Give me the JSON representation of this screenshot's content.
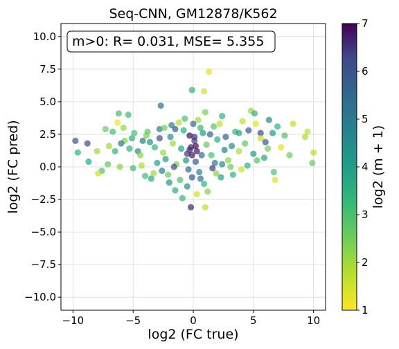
{
  "chart_data": {
    "type": "scatter",
    "title": "Seq-CNN, GM12878/K562",
    "xlabel": "log2 (FC true)",
    "ylabel": "log2 (FC pred)",
    "xlim": [
      -11,
      11
    ],
    "ylim": [
      -11,
      11
    ],
    "xticks": [
      -10,
      -5,
      0,
      5,
      10
    ],
    "xtick_labels": [
      "−10",
      "−5",
      "0",
      "5",
      "10"
    ],
    "yticks": [
      -10,
      -7.5,
      -5,
      -2.5,
      0,
      2.5,
      5,
      7.5,
      10
    ],
    "ytick_labels": [
      "−10.0",
      "−7.5",
      "−5.0",
      "−2.5",
      "0.0",
      "2.5",
      "5.0",
      "7.5",
      "10.0"
    ],
    "grid": true,
    "annotation": "m>0: R= 0.031, MSE= 5.355",
    "colorbar": {
      "label": "log2 (m + 1)",
      "min": 1,
      "max": 7,
      "ticks": [
        1,
        2,
        3,
        4,
        5,
        6,
        7
      ],
      "colormap": "viridis_r"
    },
    "marker_alpha": 0.7,
    "points": [
      [
        1.3,
        7.3,
        1.3
      ],
      [
        -0.1,
        5.9,
        3.4
      ],
      [
        0.9,
        5.8,
        1.5
      ],
      [
        -2.7,
        4.7,
        5.2
      ],
      [
        -6.2,
        4.1,
        3.1
      ],
      [
        -5.4,
        4.0,
        3.2
      ],
      [
        1.0,
        4.2,
        2.4
      ],
      [
        2.4,
        3.9,
        3.4
      ],
      [
        4.8,
        4.3,
        2.1
      ],
      [
        5.1,
        4.1,
        3.4
      ],
      [
        6.3,
        3.6,
        4.6
      ],
      [
        4.1,
        3.5,
        1.6
      ],
      [
        5.2,
        3.3,
        1.4
      ],
      [
        7.0,
        3.1,
        3.4
      ],
      [
        8.3,
        3.3,
        1.6
      ],
      [
        7.6,
        2.4,
        3.0
      ],
      [
        9.5,
        2.7,
        1.7
      ],
      [
        9.3,
        2.3,
        1.9
      ],
      [
        10.0,
        1.1,
        1.8
      ],
      [
        9.9,
        0.3,
        2.6
      ],
      [
        6.8,
        -1.0,
        1.4
      ],
      [
        6.7,
        -0.4,
        2.9
      ],
      [
        6.0,
        1.9,
        5.9
      ],
      [
        5.6,
        2.6,
        6.2
      ],
      [
        5.9,
        0.7,
        3.8
      ],
      [
        5.3,
        0.5,
        2.8
      ],
      [
        4.5,
        0.1,
        3.4
      ],
      [
        3.8,
        1.2,
        1.9
      ],
      [
        3.2,
        1.6,
        4.6
      ],
      [
        2.9,
        0.5,
        2.2
      ],
      [
        2.3,
        -0.8,
        3.9
      ],
      [
        1.8,
        0.3,
        5.0
      ],
      [
        1.2,
        -1.9,
        2.3
      ],
      [
        1.0,
        -3.1,
        1.7
      ],
      [
        -0.2,
        -3.1,
        6.6
      ],
      [
        -1.5,
        -1.8,
        3.6
      ],
      [
        -2.0,
        -1.2,
        4.2
      ],
      [
        -3.5,
        -0.9,
        3.7
      ],
      [
        -4.0,
        -0.7,
        3.1
      ],
      [
        -5.0,
        -0.1,
        3.1
      ],
      [
        -6.1,
        0.0,
        2.2
      ],
      [
        -7.1,
        0.2,
        2.6
      ],
      [
        -7.6,
        -0.3,
        2.9
      ],
      [
        -7.9,
        -0.5,
        1.5
      ],
      [
        -8.7,
        0.4,
        3.7
      ],
      [
        -9.6,
        1.1,
        3.4
      ],
      [
        -9.8,
        2.0,
        6.0
      ],
      [
        -8.8,
        1.8,
        6.2
      ],
      [
        -7.3,
        2.9,
        2.6
      ],
      [
        -6.7,
        2.7,
        3.1
      ],
      [
        -6.3,
        3.4,
        1.2
      ],
      [
        -5.8,
        3.0,
        2.1
      ],
      [
        -5.1,
        2.2,
        3.6
      ],
      [
        -4.6,
        1.2,
        4.5
      ],
      [
        -4.2,
        2.0,
        4.9
      ],
      [
        -3.8,
        2.7,
        2.8
      ],
      [
        -3.2,
        1.5,
        3.3
      ],
      [
        -2.8,
        2.9,
        5.1
      ],
      [
        -2.3,
        0.6,
        4.1
      ],
      [
        -1.7,
        1.8,
        2.0
      ],
      [
        -1.2,
        3.4,
        1.8
      ],
      [
        -0.8,
        2.8,
        3.6
      ],
      [
        -0.5,
        1.0,
        6.4
      ],
      [
        -0.3,
        2.4,
        6.9
      ],
      [
        -0.2,
        1.5,
        6.7
      ],
      [
        0.1,
        2.0,
        6.3
      ],
      [
        0.3,
        1.2,
        6.8
      ],
      [
        0.2,
        0.4,
        5.8
      ],
      [
        -0.4,
        -0.2,
        5.5
      ],
      [
        0.5,
        -0.4,
        4.8
      ],
      [
        0.7,
        0.9,
        5.4
      ],
      [
        -0.6,
        0.5,
        4.3
      ],
      [
        0.8,
        2.6,
        4.0
      ],
      [
        -1.0,
        1.4,
        3.9
      ],
      [
        1.1,
        1.7,
        2.7
      ],
      [
        -1.4,
        0.2,
        2.4
      ],
      [
        1.5,
        0.9,
        3.0
      ],
      [
        -1.9,
        2.3,
        4.4
      ],
      [
        2.0,
        2.1,
        3.6
      ],
      [
        -2.5,
        1.1,
        2.1
      ],
      [
        2.6,
        1.3,
        4.7
      ],
      [
        -3.0,
        0.3,
        3.9
      ],
      [
        3.1,
        0.0,
        2.5
      ],
      [
        -3.6,
        1.9,
        4.3
      ],
      [
        3.5,
        2.7,
        3.3
      ],
      [
        -4.4,
        0.9,
        2.2
      ],
      [
        4.3,
        1.8,
        2.7
      ],
      [
        -5.3,
        1.4,
        3.5
      ],
      [
        5.0,
        1.0,
        4.1
      ],
      [
        -6.5,
        1.2,
        3.4
      ],
      [
        6.2,
        1.4,
        2.4
      ],
      [
        -7.0,
        1.6,
        2.0
      ],
      [
        7.3,
        1.5,
        1.3
      ],
      [
        -8.0,
        1.2,
        2.0
      ],
      [
        8.0,
        0.9,
        2.5
      ],
      [
        -2.1,
        -0.6,
        2.6
      ],
      [
        1.9,
        -0.5,
        2.2
      ],
      [
        -1.1,
        -1.0,
        3.0
      ],
      [
        0.9,
        -1.3,
        3.4
      ],
      [
        -0.5,
        -1.5,
        4.4
      ],
      [
        0.3,
        -2.1,
        1.5
      ],
      [
        -0.9,
        -2.4,
        3.3
      ],
      [
        0.6,
        -0.9,
        5.2
      ],
      [
        -0.1,
        -0.8,
        6.0
      ],
      [
        1.4,
        2.5,
        5.5
      ],
      [
        -1.5,
        2.9,
        5.9
      ],
      [
        2.7,
        2.3,
        5.7
      ],
      [
        -2.8,
        2.2,
        6.2
      ],
      [
        3.8,
        2.6,
        3.8
      ],
      [
        -3.9,
        2.4,
        2.4
      ],
      [
        4.6,
        2.8,
        5.9
      ],
      [
        -4.9,
        2.6,
        3.0
      ],
      [
        5.6,
        2.2,
        1.6
      ],
      [
        -5.7,
        2.0,
        2.3
      ],
      [
        6.6,
        2.6,
        4.1
      ],
      [
        -6.0,
        1.8,
        5.2
      ],
      [
        1.7,
        3.1,
        2.9
      ],
      [
        -1.8,
        3.2,
        4.9
      ],
      [
        2.2,
        3.3,
        1.7
      ],
      [
        -2.4,
        3.0,
        2.5
      ],
      [
        0.4,
        3.6,
        2.0
      ],
      [
        -0.7,
        3.7,
        3.0
      ],
      [
        0.0,
        3.3,
        5.6
      ],
      [
        0.6,
        3.0,
        3.3
      ],
      [
        1.6,
        -0.1,
        6.4
      ],
      [
        -1.6,
        0.0,
        6.1
      ],
      [
        2.4,
        0.2,
        4.5
      ],
      [
        -2.6,
        -0.3,
        4.9
      ],
      [
        3.3,
        -0.6,
        3.5
      ],
      [
        -3.3,
        -0.5,
        2.0
      ],
      [
        4.0,
        -0.2,
        1.5
      ],
      [
        -4.3,
        0.1,
        1.9
      ],
      [
        0.2,
        1.6,
        6.9
      ],
      [
        -0.1,
        0.9,
        6.8
      ],
      [
        0.1,
        2.3,
        6.5
      ],
      [
        -0.3,
        1.3,
        6.6
      ]
    ]
  }
}
